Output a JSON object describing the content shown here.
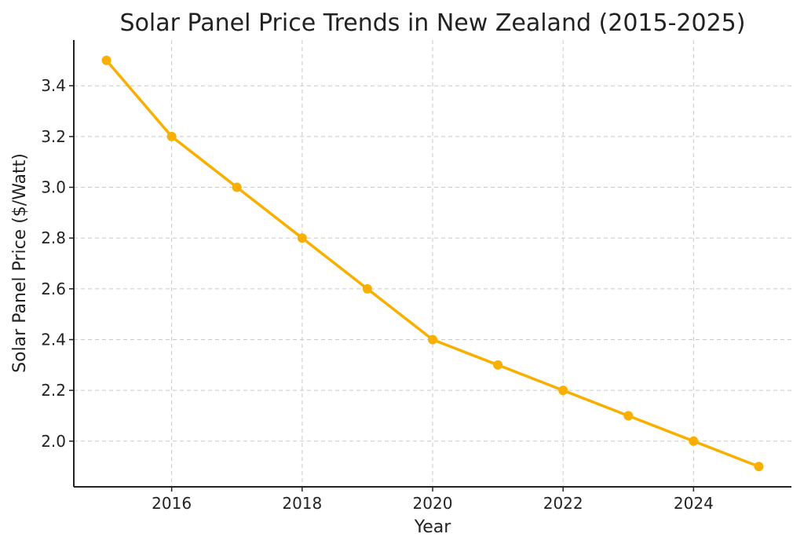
{
  "chart_data": {
    "type": "line",
    "title": "Solar Panel Price Trends in New Zealand (2015-2025)",
    "xlabel": "Year",
    "ylabel": "Solar Panel Price ($/Watt)",
    "x": [
      2015,
      2016,
      2017,
      2018,
      2019,
      2020,
      2021,
      2022,
      2023,
      2024,
      2025
    ],
    "series": [
      {
        "values": [
          3.5,
          3.2,
          3.0,
          2.8,
          2.6,
          2.4,
          2.3,
          2.2,
          2.1,
          2.0,
          1.9
        ],
        "color": "#F9AF00"
      }
    ],
    "xlim": [
      2014.5,
      2025.5
    ],
    "ylim": [
      1.82,
      3.58
    ],
    "xticks": [
      "2016",
      "2018",
      "2020",
      "2022",
      "2024"
    ],
    "yticks": [
      "2.0",
      "2.2",
      "2.4",
      "2.6",
      "2.8",
      "3.0",
      "3.2",
      "3.4"
    ],
    "grid": true,
    "marker": "circle"
  }
}
